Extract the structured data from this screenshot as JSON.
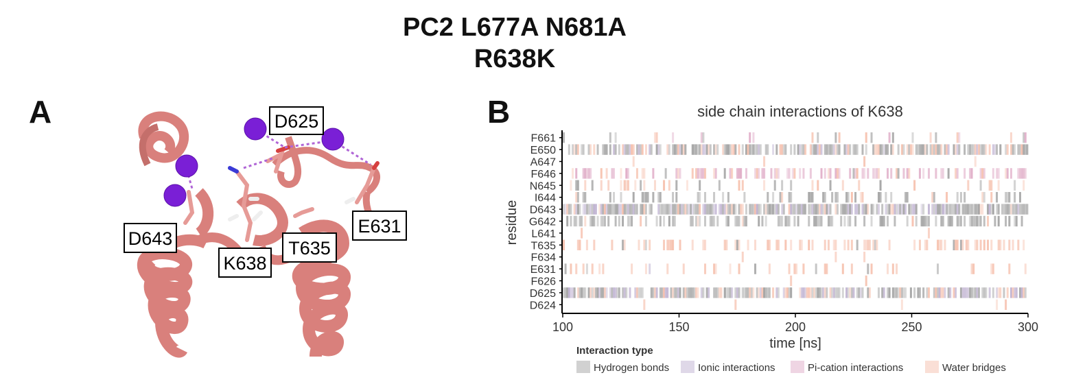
{
  "figure": {
    "title_line1": "PC2 L677A N681A",
    "title_line2": "R638K",
    "panel_a_letter": "A",
    "panel_b_letter": "B",
    "structure_labels": [
      "D625",
      "D643",
      "E631",
      "K638",
      "T635"
    ]
  },
  "colors": {
    "ribbon": "#d9807c",
    "ion": "#7a1fd6",
    "contact_line": "#b065d6",
    "hydrogen_bonds": "#9a9a9a",
    "ionic_interactions": "#b8a9cc",
    "pi_cation_interactions": "#dca2c0",
    "water_bridges": "#f5b9a4"
  },
  "chart_data": {
    "type": "heatmap",
    "title": "side chain interactions of K638",
    "xlabel": "time [ns]",
    "ylabel": "residue",
    "xlim": [
      100,
      300
    ],
    "xticks": [
      100,
      150,
      200,
      250,
      300
    ],
    "residues": [
      "F661",
      "E650",
      "A647",
      "F646",
      "N645",
      "I644",
      "D643",
      "G642",
      "L641",
      "T635",
      "F634",
      "E631",
      "F626",
      "D625",
      "D624"
    ],
    "legend_title": "Interaction type",
    "legend_position": "bottom",
    "legend": [
      {
        "label": "Hydrogen bonds",
        "color": "#9a9a9a"
      },
      {
        "label": "Ionic interactions",
        "color": "#b8a9cc"
      },
      {
        "label": "Pi-cation interactions",
        "color": "#dca2c0"
      },
      {
        "label": "Water bridges",
        "color": "#f5b9a4"
      }
    ],
    "occupancy": [
      {
        "residue": "F661",
        "Hydrogen bonds": 0.03,
        "Ionic interactions": 0.0,
        "Pi-cation interactions": 0.02,
        "Water bridges": 0.05
      },
      {
        "residue": "E650",
        "Hydrogen bonds": 0.45,
        "Ionic interactions": 0.2,
        "Pi-cation interactions": 0.0,
        "Water bridges": 0.3
      },
      {
        "residue": "A647",
        "Hydrogen bonds": 0.0,
        "Ionic interactions": 0.0,
        "Pi-cation interactions": 0.0,
        "Water bridges": 0.01
      },
      {
        "residue": "F646",
        "Hydrogen bonds": 0.05,
        "Ionic interactions": 0.0,
        "Pi-cation interactions": 0.3,
        "Water bridges": 0.15
      },
      {
        "residue": "N645",
        "Hydrogen bonds": 0.05,
        "Ionic interactions": 0.0,
        "Pi-cation interactions": 0.0,
        "Water bridges": 0.12
      },
      {
        "residue": "I644",
        "Hydrogen bonds": 0.25,
        "Ionic interactions": 0.0,
        "Pi-cation interactions": 0.0,
        "Water bridges": 0.05
      },
      {
        "residue": "D643",
        "Hydrogen bonds": 0.6,
        "Ionic interactions": 0.4,
        "Pi-cation interactions": 0.0,
        "Water bridges": 0.25
      },
      {
        "residue": "G642",
        "Hydrogen bonds": 0.4,
        "Ionic interactions": 0.0,
        "Pi-cation interactions": 0.0,
        "Water bridges": 0.05
      },
      {
        "residue": "L641",
        "Hydrogen bonds": 0.0,
        "Ionic interactions": 0.0,
        "Pi-cation interactions": 0.0,
        "Water bridges": 0.01
      },
      {
        "residue": "T635",
        "Hydrogen bonds": 0.03,
        "Ionic interactions": 0.0,
        "Pi-cation interactions": 0.0,
        "Water bridges": 0.3
      },
      {
        "residue": "F634",
        "Hydrogen bonds": 0.0,
        "Ionic interactions": 0.0,
        "Pi-cation interactions": 0.0,
        "Water bridges": 0.01
      },
      {
        "residue": "E631",
        "Hydrogen bonds": 0.03,
        "Ionic interactions": 0.02,
        "Pi-cation interactions": 0.0,
        "Water bridges": 0.15
      },
      {
        "residue": "F626",
        "Hydrogen bonds": 0.0,
        "Ionic interactions": 0.0,
        "Pi-cation interactions": 0.0,
        "Water bridges": 0.01
      },
      {
        "residue": "D625",
        "Hydrogen bonds": 0.5,
        "Ionic interactions": 0.4,
        "Pi-cation interactions": 0.0,
        "Water bridges": 0.35
      },
      {
        "residue": "D624",
        "Hydrogen bonds": 0.0,
        "Ionic interactions": 0.0,
        "Pi-cation interactions": 0.0,
        "Water bridges": 0.01
      }
    ]
  }
}
